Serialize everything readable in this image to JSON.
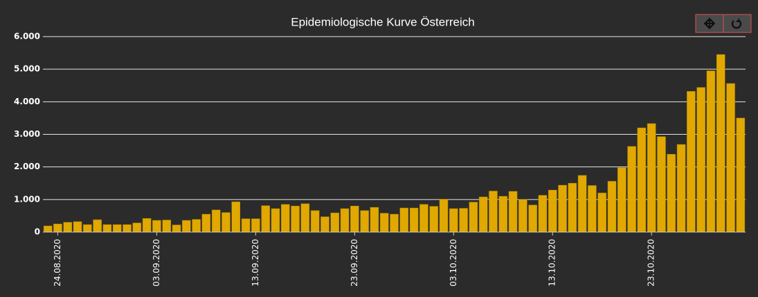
{
  "chart_data": {
    "type": "bar",
    "title": "Epidemiologische Kurve Österreich",
    "categories": [
      null,
      "24.08.2020",
      null,
      null,
      null,
      null,
      null,
      null,
      null,
      null,
      null,
      "03.09.2020",
      null,
      null,
      null,
      null,
      null,
      null,
      null,
      null,
      null,
      "13.09.2020",
      null,
      null,
      null,
      null,
      null,
      null,
      null,
      null,
      null,
      "23.09.2020",
      null,
      null,
      null,
      null,
      null,
      null,
      null,
      null,
      null,
      "03.10.2020",
      null,
      null,
      null,
      null,
      null,
      null,
      null,
      null,
      null,
      "13.10.2020",
      null,
      null,
      null,
      null,
      null,
      null,
      null,
      null,
      null,
      "23.10.2020",
      null,
      null,
      null,
      null,
      null,
      null,
      null,
      null,
      null
    ],
    "values": [
      190,
      250,
      300,
      320,
      230,
      380,
      230,
      230,
      230,
      280,
      420,
      360,
      370,
      220,
      360,
      390,
      550,
      680,
      600,
      930,
      410,
      410,
      810,
      720,
      850,
      800,
      870,
      660,
      470,
      590,
      720,
      800,
      660,
      760,
      580,
      550,
      740,
      740,
      850,
      790,
      1010,
      720,
      730,
      920,
      1080,
      1260,
      1100,
      1250,
      1000,
      830,
      1130,
      1290,
      1440,
      1500,
      1740,
      1430,
      1200,
      1560,
      1980,
      2630,
      3200,
      3330,
      2930,
      2390,
      2690,
      4320,
      4440,
      4950,
      5450,
      4560,
      3500
    ],
    "color": "#e0a800",
    "ylim": [
      0,
      6000
    ],
    "yticks": [
      0,
      {
        "value": 1000,
        "label": "1.000"
      },
      {
        "value": 2000,
        "label": "2.000"
      },
      {
        "value": 3000,
        "label": "3.000"
      },
      {
        "value": 4000,
        "label": "4.000"
      },
      {
        "value": 5000,
        "label": "5.000"
      },
      {
        "value": 6000,
        "label": "6.000"
      }
    ],
    "grid": true
  }
}
